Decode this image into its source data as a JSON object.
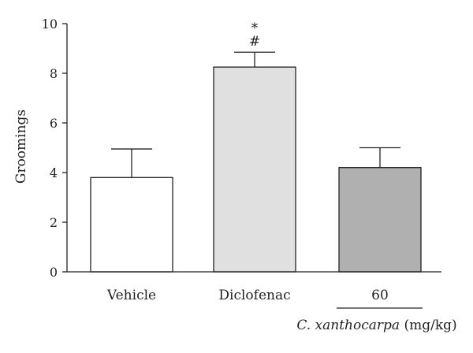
{
  "chart_data": {
    "type": "bar",
    "title": "",
    "xlabel": "",
    "ylabel": "Groomings",
    "ylim": [
      0,
      10
    ],
    "yticks": [
      0,
      2,
      4,
      6,
      8,
      10
    ],
    "categories": [
      "Vehicle",
      "Diclofenac",
      "60"
    ],
    "values": [
      3.8,
      8.25,
      4.2
    ],
    "errors": [
      1.15,
      0.6,
      0.8
    ],
    "bar_colors": [
      "#ffffff",
      "#e0e0e0",
      "#b0b0b0"
    ],
    "significance": [
      "",
      "*\n#",
      ""
    ],
    "group_label": {
      "italic": "C. xanthocarpa",
      "rest": " (mg/kg)"
    },
    "grid": false,
    "legend": "none"
  }
}
